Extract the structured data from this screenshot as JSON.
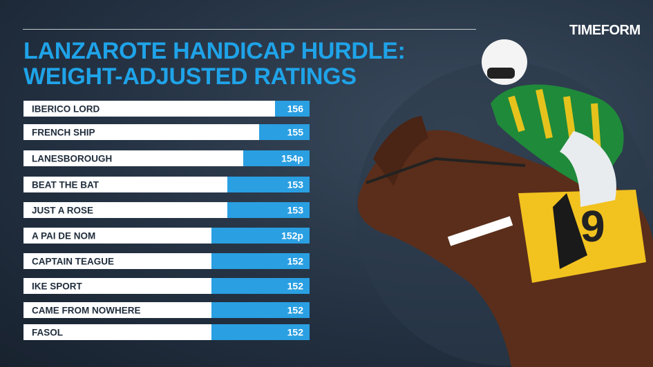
{
  "brand": {
    "logo_text": "TIMEFORM"
  },
  "chart_data": {
    "type": "bar",
    "orientation": "horizontal",
    "title_lines": [
      "LANZAROTE HANDICAP HURDLE:",
      "WEIGHT-ADJUSTED RATINGS"
    ],
    "categories": [
      "IBERICO LORD",
      "FRENCH SHIP",
      "LANESBOROUGH",
      "BEAT THE BAT",
      "JUST A ROSE",
      "A PAI DE NOM",
      "CAPTAIN TEAGUE",
      "IKE SPORT",
      "CAME FROM NOWHERE",
      "FASOL"
    ],
    "values": [
      156,
      155,
      154,
      153,
      153,
      152,
      152,
      152,
      152,
      152
    ],
    "value_labels": [
      "156",
      "155",
      "154p",
      "153",
      "153",
      "152p",
      "152",
      "152",
      "152",
      "152"
    ],
    "colors": {
      "bar": "#2a9fe2",
      "label_band": "#ffffff",
      "title": "#1fa3e8"
    }
  }
}
